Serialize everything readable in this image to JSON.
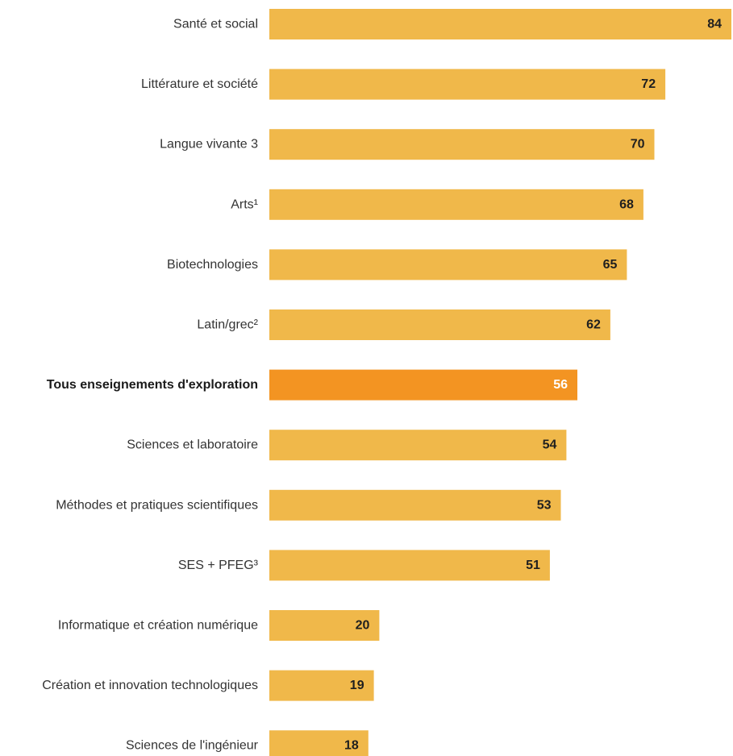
{
  "chart_data": {
    "type": "bar",
    "orientation": "horizontal",
    "title": "",
    "xlabel": "",
    "ylabel": "",
    "xlim": [
      0,
      84
    ],
    "grid": false,
    "legend": "none",
    "categories": [
      "Santé et social",
      "Littérature et société",
      "Langue vivante 3",
      "Arts¹",
      "Biotechnologies",
      "Latin/grec²",
      "Tous enseignements d'exploration",
      "Sciences et laboratoire",
      "Méthodes et pratiques scientifiques",
      "SES + PFEG³",
      "Informatique et création numérique",
      "Création et innovation technologiques",
      "Sciences de l'ingénieur"
    ],
    "values": [
      84,
      72,
      70,
      68,
      65,
      62,
      56,
      54,
      53,
      51,
      20,
      19,
      18
    ],
    "highlight_index": 6,
    "colors": {
      "bar": "#F0B84A",
      "highlight_bar": "#F39422",
      "label_text": "#333333",
      "value_text": "#1f1f1f",
      "highlight_value_text": "#ffffff"
    }
  }
}
